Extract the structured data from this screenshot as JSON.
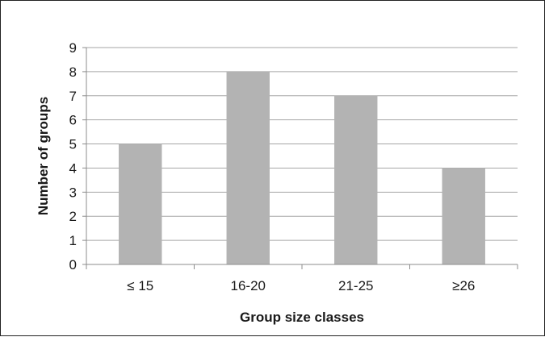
{
  "chart_data": {
    "type": "bar",
    "title": "",
    "xlabel": "Group size classes",
    "ylabel": "Number of groups",
    "categories": [
      "≤ 15",
      "16-20",
      "21-25",
      "≥26"
    ],
    "values": [
      5,
      8,
      7,
      4
    ],
    "ylim": [
      0,
      9
    ],
    "yticks": [
      0,
      1,
      2,
      3,
      4,
      5,
      6,
      7,
      8,
      9
    ],
    "grid": true,
    "legend": "none",
    "bar_color": "#b3b3b3",
    "grid_color": "#a6a6a6",
    "axis_color": "#8c8c8c"
  }
}
